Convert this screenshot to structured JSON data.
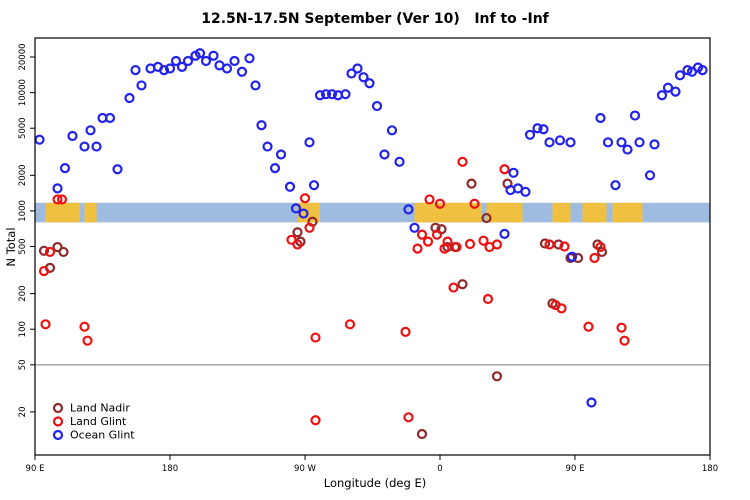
{
  "title": "12.5N-17.5N September (Ver 10)   Inf to -Inf",
  "chart_data": {
    "type": "scatter",
    "title": "12.5N-17.5N September (Ver 10)   Inf to -Inf",
    "xlabel": "Longitude (deg E)",
    "ylabel": "N Total",
    "y_scale": "log",
    "ylim": [
      13,
      26000
    ],
    "x_range": [
      0,
      450
    ],
    "xticks": [
      {
        "pos": 0,
        "label": "90 E"
      },
      {
        "pos": 90,
        "label": "180"
      },
      {
        "pos": 180,
        "label": "90 W"
      },
      {
        "pos": 270,
        "label": "0"
      },
      {
        "pos": 360,
        "label": "90 E"
      },
      {
        "pos": 450,
        "label": "180"
      }
    ],
    "yticks": [
      20,
      50,
      100,
      200,
      500,
      1000,
      2000,
      5000,
      10000,
      20000
    ],
    "reference_line_y": 50,
    "grid": "off",
    "legend_position": "bottom-left-inside",
    "band": {
      "y_range": [
        800,
        1170
      ],
      "color": "#9FBCE0",
      "land_color": "#F0C040",
      "land_segments": [
        [
          7,
          30
        ],
        [
          33,
          41
        ],
        [
          175,
          190
        ],
        [
          253,
          298
        ],
        [
          301,
          325
        ],
        [
          345,
          357
        ],
        [
          365,
          381
        ],
        [
          385,
          405
        ]
      ]
    },
    "series": [
      {
        "name": "Land Nadir",
        "color": "#8E2A2A",
        "points": [
          [
            6,
            460
          ],
          [
            10,
            330
          ],
          [
            15,
            495
          ],
          [
            19,
            450
          ],
          [
            175,
            660
          ],
          [
            177,
            550
          ],
          [
            185,
            810
          ],
          [
            258,
            13
          ],
          [
            267,
            720
          ],
          [
            271,
            700
          ],
          [
            275,
            495
          ],
          [
            280,
            495
          ],
          [
            285,
            240
          ],
          [
            291,
            1700
          ],
          [
            301,
            870
          ],
          [
            308,
            40
          ],
          [
            315,
            1700
          ],
          [
            340,
            530
          ],
          [
            345,
            165
          ],
          [
            349,
            520
          ],
          [
            357,
            400
          ],
          [
            362,
            400
          ],
          [
            375,
            520
          ],
          [
            378,
            450
          ]
        ]
      },
      {
        "name": "Land Glint",
        "color": "#EE1111",
        "points": [
          [
            6,
            310
          ],
          [
            7,
            110
          ],
          [
            10,
            450
          ],
          [
            15,
            1250
          ],
          [
            18,
            1250
          ],
          [
            33,
            105
          ],
          [
            35,
            80
          ],
          [
            171,
            570
          ],
          [
            175,
            520
          ],
          [
            180,
            1280
          ],
          [
            183,
            720
          ],
          [
            187,
            85
          ],
          [
            187,
            17
          ],
          [
            210,
            110
          ],
          [
            247,
            95
          ],
          [
            249,
            18
          ],
          [
            255,
            480
          ],
          [
            258,
            630
          ],
          [
            262,
            550
          ],
          [
            263,
            1250
          ],
          [
            268,
            630
          ],
          [
            270,
            1150
          ],
          [
            273,
            480
          ],
          [
            275,
            550
          ],
          [
            279,
            225
          ],
          [
            281,
            495
          ],
          [
            285,
            2600
          ],
          [
            290,
            525
          ],
          [
            293,
            1150
          ],
          [
            299,
            560
          ],
          [
            302,
            180
          ],
          [
            303,
            495
          ],
          [
            308,
            520
          ],
          [
            313,
            2250
          ],
          [
            343,
            520
          ],
          [
            347,
            160
          ],
          [
            351,
            150
          ],
          [
            353,
            500
          ],
          [
            369,
            105
          ],
          [
            373,
            400
          ],
          [
            377,
            495
          ],
          [
            391,
            103
          ],
          [
            393,
            80
          ]
        ]
      },
      {
        "name": "Ocean Glint",
        "color": "#2222EE",
        "points": [
          [
            3,
            4000
          ],
          [
            15,
            1550
          ],
          [
            20,
            2300
          ],
          [
            25,
            4300
          ],
          [
            33,
            3500
          ],
          [
            37,
            4800
          ],
          [
            41,
            3500
          ],
          [
            45,
            6100
          ],
          [
            50,
            6100
          ],
          [
            55,
            2250
          ],
          [
            63,
            9000
          ],
          [
            67,
            15500
          ],
          [
            71,
            11500
          ],
          [
            77,
            16000
          ],
          [
            82,
            16500
          ],
          [
            86,
            15500
          ],
          [
            90,
            16000
          ],
          [
            94,
            18500
          ],
          [
            98,
            16500
          ],
          [
            102,
            18500
          ],
          [
            107,
            20500
          ],
          [
            110,
            21500
          ],
          [
            114,
            18500
          ],
          [
            119,
            20500
          ],
          [
            123,
            17000
          ],
          [
            128,
            16000
          ],
          [
            133,
            18500
          ],
          [
            138,
            15000
          ],
          [
            143,
            19500
          ],
          [
            147,
            11500
          ],
          [
            151,
            5300
          ],
          [
            155,
            3500
          ],
          [
            160,
            2300
          ],
          [
            164,
            3000
          ],
          [
            170,
            1600
          ],
          [
            174,
            1050
          ],
          [
            179,
            950
          ],
          [
            183,
            3800
          ],
          [
            186,
            1650
          ],
          [
            190,
            9500
          ],
          [
            194,
            9700
          ],
          [
            198,
            9700
          ],
          [
            202,
            9500
          ],
          [
            207,
            9700
          ],
          [
            211,
            14500
          ],
          [
            215,
            16000
          ],
          [
            219,
            13500
          ],
          [
            223,
            12000
          ],
          [
            228,
            7700
          ],
          [
            233,
            3000
          ],
          [
            238,
            4800
          ],
          [
            243,
            2600
          ],
          [
            249,
            1030
          ],
          [
            253,
            720
          ],
          [
            313,
            640
          ],
          [
            317,
            1500
          ],
          [
            319,
            2100
          ],
          [
            322,
            1550
          ],
          [
            327,
            1450
          ],
          [
            330,
            4400
          ],
          [
            335,
            5000
          ],
          [
            339,
            4900
          ],
          [
            343,
            3800
          ],
          [
            350,
            3950
          ],
          [
            357,
            3800
          ],
          [
            358,
            410
          ],
          [
            371,
            24
          ],
          [
            377,
            6100
          ],
          [
            382,
            3800
          ],
          [
            387,
            1650
          ],
          [
            391,
            3800
          ],
          [
            395,
            3300
          ],
          [
            400,
            6400
          ],
          [
            403,
            3800
          ],
          [
            410,
            2000
          ],
          [
            413,
            3650
          ],
          [
            418,
            9500
          ],
          [
            422,
            11000
          ],
          [
            427,
            10200
          ],
          [
            430,
            14000
          ],
          [
            435,
            15500
          ],
          [
            438,
            15000
          ],
          [
            442,
            16300
          ],
          [
            445,
            15500
          ]
        ]
      }
    ]
  }
}
